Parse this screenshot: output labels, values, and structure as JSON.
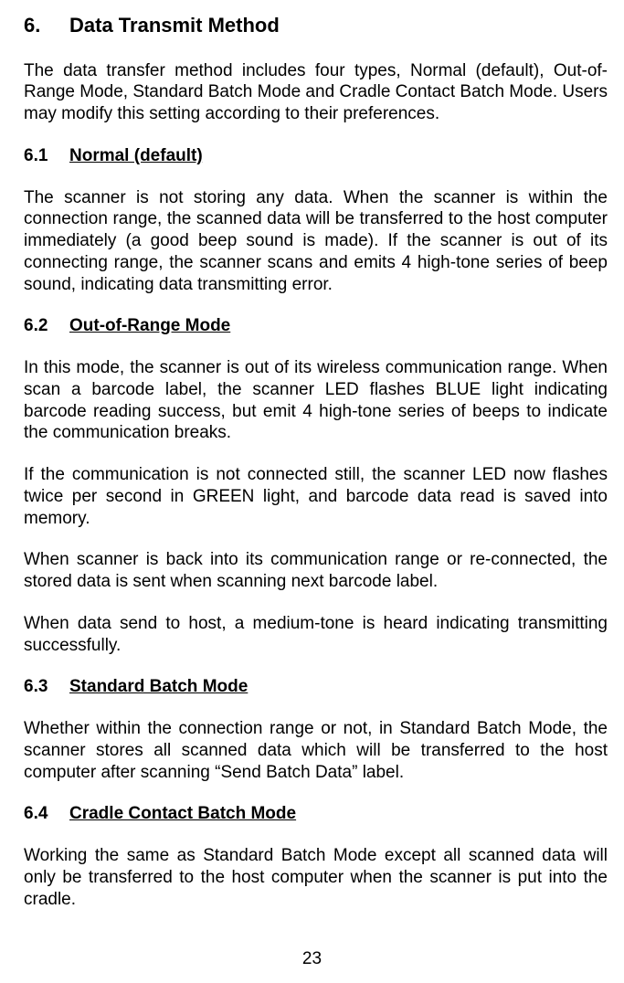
{
  "heading": {
    "num": "6.",
    "title": "Data Transmit Method"
  },
  "intro_para": "The data transfer method includes four types, Normal (default), Out-of-Range Mode, Standard Batch Mode and Cradle Contact Batch Mode. Users may modify this setting according to their preferences.",
  "s1": {
    "num": "6.1",
    "title": "Normal (default)",
    "p1": "The scanner is not storing any data. When the scanner is within the connection range, the scanned data will be transferred to the host computer immediately (a good beep sound is made). If the scanner is out of its connecting range, the scanner scans and emits 4 high-tone series of beep sound, indicating data transmitting error."
  },
  "s2": {
    "num": "6.2",
    "title": "Out-of-Range Mode",
    "p1": "In this mode, the scanner is out of its wireless communication range. When scan a barcode label, the scanner LED flashes BLUE light indicating barcode reading success, but emit 4 high-tone series of beeps to indicate the communication breaks.",
    "p2": "If the communication is not connected still, the scanner LED now flashes twice per second in GREEN light, and barcode data read is saved into memory.",
    "p3": "When scanner is back into its communication range or re-connected, the stored data is sent when scanning next barcode label.",
    "p4": "When data send to host, a medium-tone is heard indicating transmitting successfully."
  },
  "s3": {
    "num": "6.3",
    "title": "Standard Batch Mode",
    "p1": "Whether within the connection range or not, in Standard Batch Mode, the scanner stores all scanned data which will be transferred to the host computer after scanning “Send Batch Data” label."
  },
  "s4": {
    "num": "6.4",
    "title": "Cradle Contact Batch Mode",
    "p1": "Working the same as Standard Batch Mode except all scanned data will only be transferred to the host computer when the scanner is put into the cradle."
  },
  "page_number": "23"
}
